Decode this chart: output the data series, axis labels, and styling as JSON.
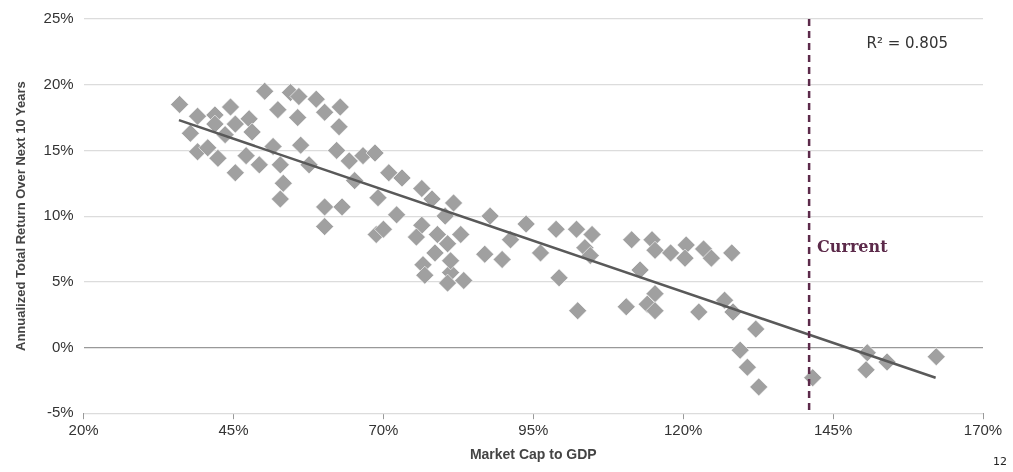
{
  "chart_data": {
    "type": "scatter",
    "xlabel": "Market Cap to GDP",
    "ylabel": "Annualized Total Return Over Next 10 Years",
    "xlim": [
      20,
      170
    ],
    "xticks": [
      {
        "value": 20,
        "label": "20%"
      },
      {
        "value": 45,
        "label": "45%"
      },
      {
        "value": 70,
        "label": "70%"
      },
      {
        "value": 95,
        "label": "95%"
      },
      {
        "value": 120,
        "label": "120%"
      },
      {
        "value": 145,
        "label": "145%"
      },
      {
        "value": 170,
        "label": "170%"
      }
    ],
    "ylim": [
      -5,
      25
    ],
    "yticks": [
      {
        "value": -5,
        "label": "-5%"
      },
      {
        "value": 0,
        "label": "0%"
      },
      {
        "value": 5,
        "label": "5%"
      },
      {
        "value": 10,
        "label": "10%"
      },
      {
        "value": 15,
        "label": "15%"
      },
      {
        "value": 20,
        "label": "20%"
      },
      {
        "value": 25,
        "label": "25%"
      }
    ],
    "grid": "y",
    "legend": false,
    "marker": "diamond",
    "series": [
      {
        "color": "#a0a0a0",
        "x": [
          36.0,
          39.0,
          41.9,
          44.5,
          47.6,
          50.2,
          52.4,
          54.5,
          55.9,
          58.8,
          55.7,
          60.2,
          62.8,
          62.6,
          39.0,
          42.4,
          40.7,
          45.3,
          47.1,
          49.3,
          51.6,
          52.8,
          56.2,
          57.6,
          53.3,
          52.8,
          62.2,
          64.3,
          66.6,
          68.6,
          65.2,
          60.2,
          63.1,
          60.2,
          68.8,
          37.8,
          43.6,
          45.3,
          48.1,
          41.9,
          70.9,
          73.1,
          69.1,
          72.2,
          70.0,
          76.4,
          78.1,
          81.7,
          80.3,
          76.4,
          75.5,
          79.0,
          82.9,
          80.7,
          78.6,
          76.6,
          81.2,
          80.7,
          83.4,
          81.2,
          76.9,
          87.8,
          86.9,
          89.8,
          91.2,
          93.8,
          96.2,
          98.8,
          99.3,
          102.2,
          104.8,
          103.6,
          102.4,
          104.5,
          111.4,
          114.8,
          115.3,
          117.9,
          120.5,
          120.3,
          123.4,
          124.7,
          128.1,
          112.8,
          115.3,
          110.5,
          114.0,
          115.3,
          122.6,
          126.9,
          128.3,
          132.1,
          129.5,
          130.7,
          132.6,
          141.6,
          150.7,
          150.5,
          154.0,
          162.2
        ],
        "values": [
          18.5,
          17.6,
          17.7,
          18.3,
          17.4,
          19.5,
          18.1,
          19.4,
          19.1,
          18.9,
          17.5,
          17.9,
          18.3,
          16.8,
          14.9,
          14.4,
          15.2,
          13.3,
          14.6,
          13.9,
          15.3,
          13.9,
          15.4,
          13.9,
          12.5,
          11.3,
          15.0,
          14.2,
          14.6,
          14.8,
          12.7,
          10.7,
          10.7,
          9.2,
          8.6,
          16.3,
          16.2,
          17.0,
          16.4,
          17.0,
          13.3,
          12.9,
          11.4,
          10.1,
          9.0,
          12.1,
          11.3,
          11.0,
          10.0,
          9.3,
          8.4,
          8.6,
          8.6,
          7.9,
          7.2,
          6.3,
          5.7,
          4.9,
          5.1,
          6.6,
          5.5,
          10.0,
          7.1,
          6.7,
          8.2,
          9.4,
          7.2,
          9.0,
          5.3,
          9.0,
          8.6,
          7.6,
          2.8,
          7.0,
          8.2,
          8.2,
          7.4,
          7.2,
          7.8,
          6.8,
          7.5,
          6.8,
          7.2,
          5.9,
          4.1,
          3.1,
          3.3,
          2.8,
          2.7,
          3.6,
          2.7,
          1.4,
          -0.2,
          -1.5,
          -3.0,
          -2.3,
          -0.4,
          -1.7,
          -1.1,
          -0.7
        ]
      },
      {
        "type": "line",
        "color": "#595959",
        "x": [
          35.9,
          162.1
        ],
        "values": [
          17.3,
          -2.3
        ],
        "marker": "none"
      }
    ],
    "ref_lines": [
      {
        "axis": "x",
        "value": 141,
        "label": "Current",
        "color": "#5c2a4a",
        "line_style": "dashed"
      }
    ],
    "annotations": [
      "R² = 0.805",
      "12"
    ]
  }
}
